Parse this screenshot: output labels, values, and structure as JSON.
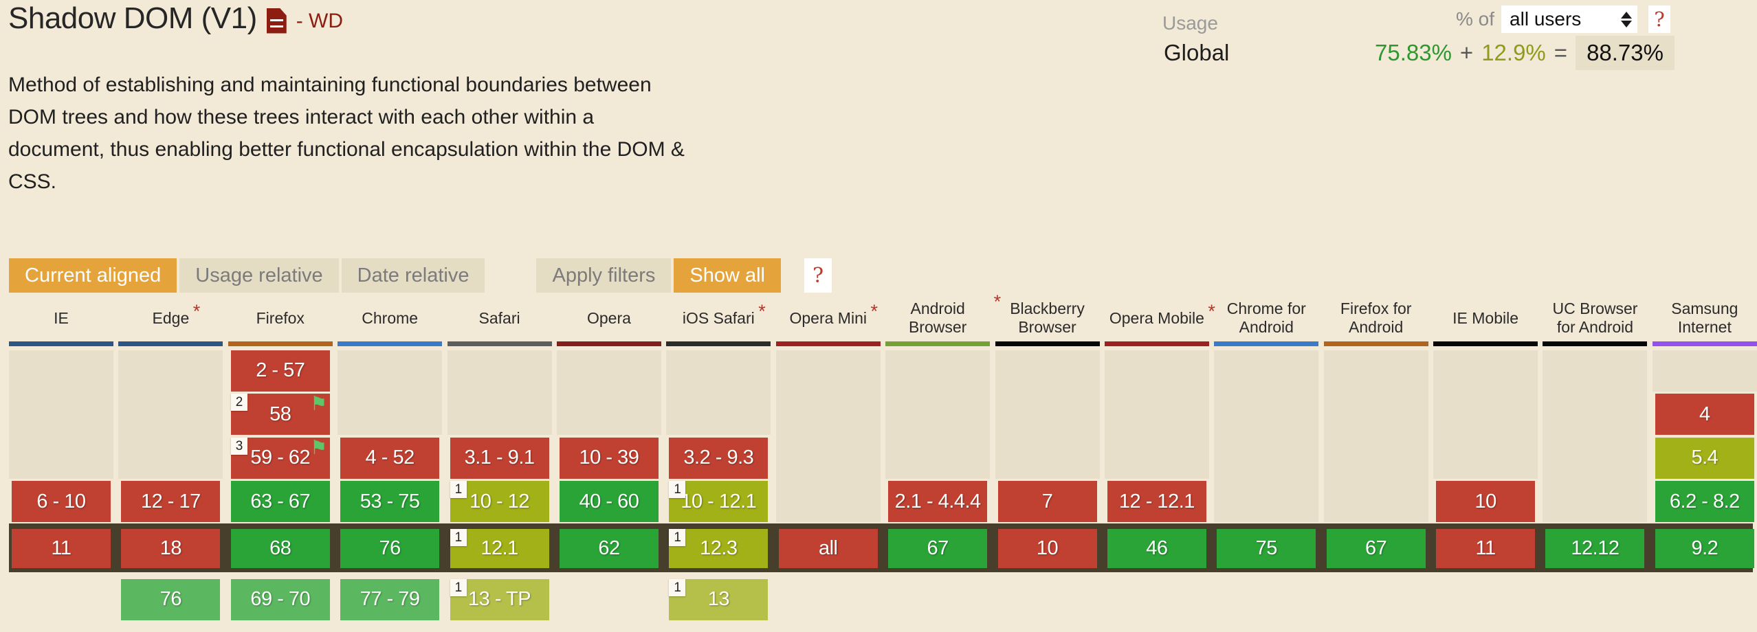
{
  "header": {
    "title": "Shadow DOM (V1)",
    "status": "- WD",
    "doc_icon": "document-icon",
    "description": "Method of establishing and maintaining functional boundaries between DOM trees and how these trees interact with each other within a document, thus enabling better functional encapsulation within the DOM & CSS."
  },
  "usage": {
    "label": "Usage",
    "percent_of_label": "% of",
    "select_value": "all users",
    "help_label": "?",
    "row_label": "Global",
    "supported_percent": "75.83%",
    "plus": "+",
    "partial_percent": "12.9%",
    "equals": "=",
    "total_percent": "88.73%"
  },
  "toolbar": {
    "buttons": [
      {
        "label": "Current aligned",
        "active": true
      },
      {
        "label": "Usage relative",
        "active": false
      },
      {
        "label": "Date relative",
        "active": false
      }
    ],
    "filter_buttons": [
      {
        "label": "Apply filters",
        "active": false
      },
      {
        "label": "Show all",
        "active": true
      }
    ],
    "help_label": "?"
  },
  "colors": {
    "page_bg": "#f2e9d7",
    "past_track": "#e8dfca",
    "no_support": "#c04132",
    "supported": "#2aa437",
    "partial": "#a2b117",
    "future_supported": "#5cb860",
    "future_partial": "#b5c04a",
    "current_band": "#473e2c",
    "accent_orange": "#e5a33c",
    "inactive_button_bg": "#e5dcc4",
    "inactive_button_text": "#7b7b7b",
    "help_red": "#c0392b",
    "star_red": "#b8352a",
    "note_flag_green": "#5fc46a",
    "status_red": "#8c1d11",
    "percent_green": "#2f972f",
    "percent_olive": "#8f9b1a",
    "total_chip_bg": "#e8dfc8"
  },
  "table": {
    "row_meaning": [
      "past",
      "past",
      "past",
      "past",
      "current",
      "future"
    ],
    "browsers": [
      {
        "name": "IE",
        "star": false,
        "bar_color": "#2b5685",
        "cells": [
          null,
          null,
          null,
          {
            "text": "6 - 10",
            "support": "n"
          },
          {
            "text": "11",
            "support": "n"
          },
          null
        ]
      },
      {
        "name": "Edge",
        "star": true,
        "bar_color": "#2b5685",
        "cells": [
          null,
          null,
          null,
          {
            "text": "12 - 17",
            "support": "n"
          },
          {
            "text": "18",
            "support": "n"
          },
          {
            "text": "76",
            "support": "yf"
          }
        ]
      },
      {
        "name": "Firefox",
        "star": false,
        "bar_color": "#b2641c",
        "cells": [
          {
            "text": "2 - 57",
            "support": "n"
          },
          {
            "text": "58",
            "support": "n",
            "notes": [
              "2"
            ],
            "flag": true
          },
          {
            "text": "59 - 62",
            "support": "n",
            "notes": [
              "3"
            ],
            "flag": true
          },
          {
            "text": "63 - 67",
            "support": "y"
          },
          {
            "text": "68",
            "support": "y"
          },
          {
            "text": "69 - 70",
            "support": "yf"
          }
        ]
      },
      {
        "name": "Chrome",
        "star": false,
        "bar_color": "#3b7ac6",
        "cells": [
          null,
          null,
          {
            "text": "4 - 52",
            "support": "n"
          },
          {
            "text": "53 - 75",
            "support": "y"
          },
          {
            "text": "76",
            "support": "y"
          },
          {
            "text": "77 - 79",
            "support": "yf"
          }
        ]
      },
      {
        "name": "Safari",
        "star": false,
        "bar_color": "#5e5e5e",
        "cells": [
          null,
          null,
          {
            "text": "3.1 - 9.1",
            "support": "n"
          },
          {
            "text": "10 - 12",
            "support": "a",
            "notes": [
              "1"
            ]
          },
          {
            "text": "12.1",
            "support": "a",
            "notes": [
              "1"
            ]
          },
          {
            "text": "13 - TP",
            "support": "af",
            "notes": [
              "1"
            ]
          }
        ]
      },
      {
        "name": "Opera",
        "star": false,
        "bar_color": "#841f1f",
        "cells": [
          null,
          null,
          {
            "text": "10 - 39",
            "support": "n"
          },
          {
            "text": "40 - 60",
            "support": "y"
          },
          {
            "text": "62",
            "support": "y"
          },
          null
        ]
      },
      {
        "name": "iOS Safari",
        "star": true,
        "bar_color": "#2c2c2c",
        "cells": [
          null,
          null,
          {
            "text": "3.2 - 9.3",
            "support": "n"
          },
          {
            "text": "10 - 12.1",
            "support": "a",
            "notes": [
              "1"
            ]
          },
          {
            "text": "12.3",
            "support": "a",
            "notes": [
              "1"
            ]
          },
          {
            "text": "13",
            "support": "af",
            "notes": [
              "1"
            ]
          }
        ]
      },
      {
        "name": "Opera Mini",
        "star": true,
        "bar_color": "#9e2022",
        "cells": [
          null,
          null,
          null,
          null,
          {
            "text": "all",
            "support": "n"
          },
          null
        ]
      },
      {
        "name": "Android Browser",
        "star": true,
        "bar_color": "#73a135",
        "cells": [
          null,
          null,
          null,
          {
            "text": "2.1 - 4.4.4",
            "support": "n"
          },
          {
            "text": "67",
            "support": "y"
          },
          null
        ]
      },
      {
        "name": "Blackberry Browser",
        "star": false,
        "bar_color": "#070707",
        "cells": [
          null,
          null,
          null,
          {
            "text": "7",
            "support": "n"
          },
          {
            "text": "10",
            "support": "n"
          },
          null
        ]
      },
      {
        "name": "Opera Mobile",
        "star": true,
        "bar_color": "#9e2022",
        "cells": [
          null,
          null,
          null,
          {
            "text": "12 - 12.1",
            "support": "n"
          },
          {
            "text": "46",
            "support": "y"
          },
          null
        ]
      },
      {
        "name": "Chrome for Android",
        "star": false,
        "bar_color": "#3b7ac6",
        "cells": [
          null,
          null,
          null,
          null,
          {
            "text": "75",
            "support": "y"
          },
          null
        ]
      },
      {
        "name": "Firefox for Android",
        "star": false,
        "bar_color": "#b2641c",
        "cells": [
          null,
          null,
          null,
          null,
          {
            "text": "67",
            "support": "y"
          },
          null
        ]
      },
      {
        "name": "IE Mobile",
        "star": false,
        "bar_color": "#070707",
        "cells": [
          null,
          null,
          null,
          {
            "text": "10",
            "support": "n"
          },
          {
            "text": "11",
            "support": "n"
          },
          null
        ]
      },
      {
        "name": "UC Browser for Android",
        "star": false,
        "bar_color": "#070707",
        "cells": [
          null,
          null,
          null,
          null,
          {
            "text": "12.12",
            "support": "y"
          },
          null
        ]
      },
      {
        "name": "Samsung Internet",
        "star": false,
        "bar_color": "#9551ef",
        "cells": [
          null,
          {
            "text": "4",
            "support": "n"
          },
          {
            "text": "5.4",
            "support": "a"
          },
          {
            "text": "6.2 - 8.2",
            "support": "y"
          },
          {
            "text": "9.2",
            "support": "y"
          },
          null
        ]
      }
    ]
  }
}
